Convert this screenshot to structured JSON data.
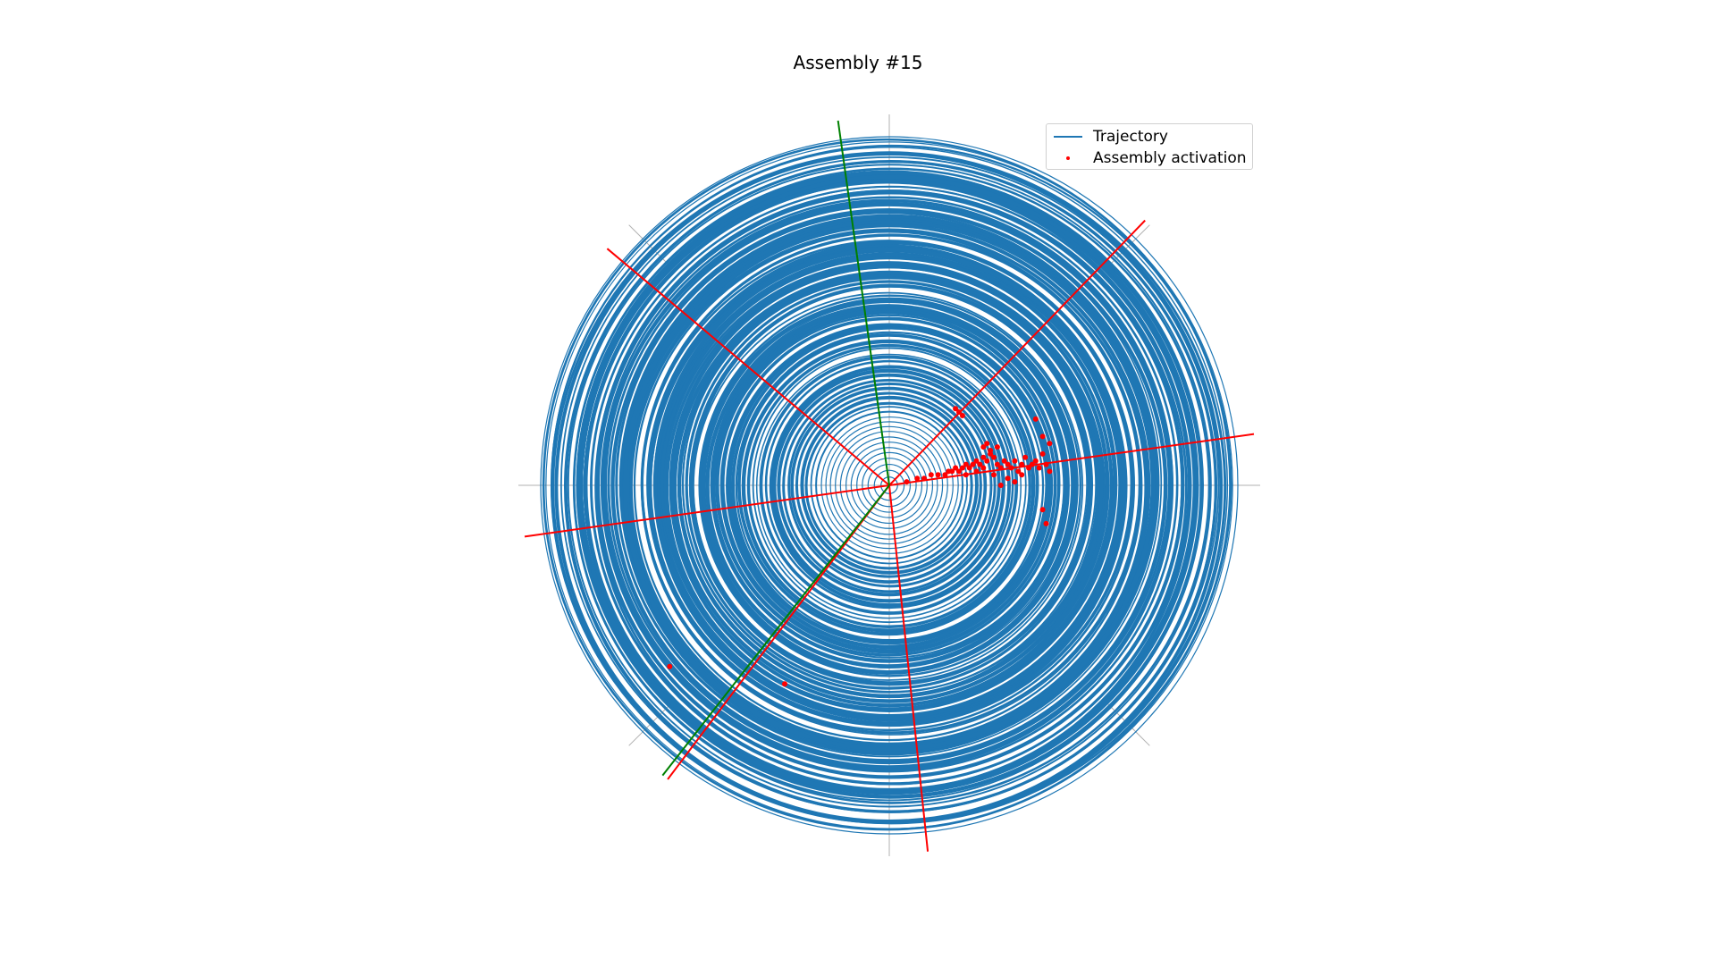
{
  "chart_data": {
    "type": "scatter",
    "title": "Assembly #15",
    "xlabel": "",
    "ylabel": "",
    "axes_visible": false,
    "legend_placement": "upper-right",
    "colors": {
      "trajectory": "#1f77b4",
      "activation": "#ff0000",
      "red_lines": "#ff0000",
      "green_lines": "#008000",
      "reference_axes": "#b0b0b0"
    },
    "legend": [
      {
        "label": "Trajectory",
        "marker": "line",
        "color": "#1f77b4"
      },
      {
        "label": "Assembly activation",
        "marker": "dot",
        "color": "#ff0000"
      }
    ],
    "series": [
      {
        "name": "Trajectory",
        "kind": "line",
        "description_radius_range": [
          0.0,
          1.0
        ],
        "ring_count_estimate": 80
      },
      {
        "name": "Assembly activation",
        "kind": "scatter",
        "points": [
          [
            0.05,
            0.01
          ],
          [
            0.08,
            0.02
          ],
          [
            0.1,
            0.02
          ],
          [
            0.12,
            0.03
          ],
          [
            0.14,
            0.03
          ],
          [
            0.16,
            0.03
          ],
          [
            0.17,
            0.04
          ],
          [
            0.18,
            0.04
          ],
          [
            0.19,
            0.05
          ],
          [
            0.2,
            0.04
          ],
          [
            0.21,
            0.05
          ],
          [
            0.22,
            0.06
          ],
          [
            0.23,
            0.05
          ],
          [
            0.24,
            0.06
          ],
          [
            0.25,
            0.07
          ],
          [
            0.26,
            0.06
          ],
          [
            0.27,
            0.08
          ],
          [
            0.28,
            0.07
          ],
          [
            0.29,
            0.09
          ],
          [
            0.3,
            0.08
          ],
          [
            0.31,
            0.06
          ],
          [
            0.32,
            0.05
          ],
          [
            0.33,
            0.07
          ],
          [
            0.34,
            0.06
          ],
          [
            0.35,
            0.05
          ],
          [
            0.36,
            0.07
          ],
          [
            0.37,
            0.04
          ],
          [
            0.38,
            0.06
          ],
          [
            0.39,
            0.08
          ],
          [
            0.4,
            0.05
          ],
          [
            0.41,
            0.06
          ],
          [
            0.42,
            0.07
          ],
          [
            0.43,
            0.05
          ],
          [
            0.44,
            0.09
          ],
          [
            0.45,
            0.06
          ],
          [
            0.46,
            0.04
          ],
          [
            0.25,
            0.04
          ],
          [
            0.22,
            0.03
          ],
          [
            0.27,
            0.05
          ],
          [
            0.3,
            0.03
          ],
          [
            0.29,
            0.1
          ],
          [
            0.27,
            0.11
          ],
          [
            0.28,
            0.12
          ],
          [
            0.31,
            0.11
          ],
          [
            0.2,
            0.21
          ],
          [
            0.21,
            0.2
          ],
          [
            0.19,
            0.22
          ],
          [
            0.42,
            0.19
          ],
          [
            0.44,
            0.14
          ],
          [
            0.46,
            0.12
          ],
          [
            0.44,
            -0.07
          ],
          [
            0.45,
            -0.11
          ],
          [
            0.32,
            0.0
          ],
          [
            0.34,
            0.02
          ],
          [
            0.36,
            0.01
          ],
          [
            0.38,
            0.03
          ],
          [
            -0.63,
            -0.52
          ],
          [
            -0.3,
            -0.57
          ]
        ]
      }
    ],
    "red_line_angles_deg": [
      8,
      46,
      140,
      188,
      233,
      276
    ],
    "green_line_angles_deg": [
      98,
      232
    ],
    "xlim": [
      -1.05,
      1.05
    ],
    "ylim": [
      -1.05,
      1.05
    ]
  }
}
